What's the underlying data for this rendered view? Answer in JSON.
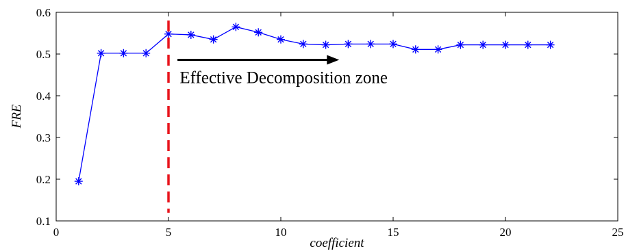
{
  "chart_data": {
    "type": "line",
    "title": "",
    "xlabel": "coefficient",
    "ylabel": "FRE",
    "xlim": [
      0,
      25
    ],
    "ylim": [
      0.1,
      0.6
    ],
    "x_ticks": [
      "0",
      "5",
      "10",
      "15",
      "20",
      "25"
    ],
    "y_ticks": [
      "0.1",
      "0.2",
      "0.3",
      "0.4",
      "0.5",
      "0.6"
    ],
    "grid": false,
    "series": [
      {
        "color": "#0000ff",
        "marker": "asterisk",
        "x": [
          1,
          2,
          3,
          4,
          5,
          6,
          7,
          8,
          9,
          10,
          11,
          12,
          13,
          14,
          15,
          16,
          17,
          18,
          19,
          20,
          21,
          22
        ],
        "values": [
          0.195,
          0.502,
          0.502,
          0.502,
          0.548,
          0.546,
          0.535,
          0.565,
          0.552,
          0.535,
          0.524,
          0.522,
          0.524,
          0.524,
          0.524,
          0.511,
          0.511,
          0.522,
          0.522,
          0.522,
          0.522,
          0.522
        ]
      }
    ],
    "annotations": {
      "zone_text": "Effective Decomposition zone",
      "zone_text_position": [
        5.5,
        0.43
      ],
      "vline_x": 5,
      "vline_color": "#e8141c",
      "arrow_from": [
        5.4,
        0.486
      ],
      "arrow_to": [
        12.6,
        0.486
      ],
      "arrow_color": "#000000"
    }
  }
}
